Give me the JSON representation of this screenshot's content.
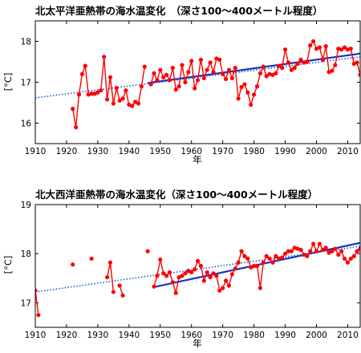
{
  "chart_data": [
    {
      "type": "line",
      "title": "北太平洋亜熱帯の海水温変化　（深さ100〜400メートル程度）",
      "xlabel": "年",
      "ylabel": "[°C]",
      "xlim": [
        1910,
        2014
      ],
      "ylim": [
        15.5,
        18.5
      ],
      "xticks": [
        1910,
        1920,
        1930,
        1940,
        1950,
        1960,
        1970,
        1980,
        1990,
        2000,
        2010
      ],
      "yticks": [
        16,
        17,
        18
      ],
      "series": [
        {
          "style": "red-line-markers",
          "color": "#ff0000",
          "segments": [
            [
              [
                1922,
                16.35
              ],
              [
                1923,
                15.9
              ],
              [
                1924,
                16.7
              ],
              [
                1925,
                17.2
              ],
              [
                1926,
                17.4
              ],
              [
                1927,
                16.7
              ],
              [
                1928,
                16.72
              ],
              [
                1929,
                16.72
              ],
              [
                1930,
                16.75
              ],
              [
                1931,
                16.8
              ],
              [
                1932,
                17.62
              ],
              [
                1933,
                16.58
              ],
              [
                1934,
                17.12
              ],
              [
                1935,
                16.48
              ],
              [
                1936,
                16.86
              ],
              [
                1937,
                16.55
              ],
              [
                1938,
                16.6
              ],
              [
                1939,
                16.8
              ],
              [
                1940,
                16.45
              ],
              [
                1941,
                16.42
              ],
              [
                1942,
                16.52
              ],
              [
                1943,
                16.48
              ],
              [
                1944,
                16.9
              ],
              [
                1945,
                17.38
              ]
            ],
            [
              [
                1947,
                16.95
              ],
              [
                1948,
                17.22
              ],
              [
                1949,
                17.05
              ],
              [
                1950,
                17.3
              ],
              [
                1951,
                17.12
              ],
              [
                1952,
                17.18
              ],
              [
                1953,
                17.05
              ],
              [
                1954,
                17.35
              ],
              [
                1955,
                16.82
              ],
              [
                1956,
                16.9
              ],
              [
                1957,
                17.42
              ],
              [
                1958,
                17.0
              ],
              [
                1959,
                17.25
              ],
              [
                1960,
                17.52
              ],
              [
                1961,
                16.85
              ],
              [
                1962,
                17.05
              ],
              [
                1963,
                17.55
              ],
              [
                1964,
                17.1
              ],
              [
                1965,
                17.3
              ],
              [
                1966,
                17.48
              ],
              [
                1967,
                17.25
              ],
              [
                1968,
                17.58
              ],
              [
                1969,
                17.55
              ],
              [
                1970,
                17.2
              ],
              [
                1971,
                17.08
              ],
              [
                1972,
                17.3
              ],
              [
                1973,
                17.1
              ],
              [
                1974,
                17.35
              ],
              [
                1975,
                16.6
              ],
              [
                1976,
                16.88
              ],
              [
                1977,
                16.95
              ],
              [
                1978,
                16.75
              ],
              [
                1979,
                16.45
              ],
              [
                1980,
                16.7
              ],
              [
                1981,
                16.9
              ],
              [
                1982,
                17.22
              ],
              [
                1983,
                17.38
              ],
              [
                1984,
                17.15
              ],
              [
                1985,
                17.2
              ],
              [
                1986,
                17.18
              ],
              [
                1987,
                17.22
              ],
              [
                1988,
                17.4
              ],
              [
                1989,
                17.35
              ],
              [
                1990,
                17.8
              ],
              [
                1991,
                17.48
              ],
              [
                1992,
                17.3
              ],
              [
                1993,
                17.35
              ],
              [
                1994,
                17.45
              ],
              [
                1995,
                17.55
              ],
              [
                1996,
                17.48
              ],
              [
                1997,
                17.5
              ],
              [
                1998,
                17.9
              ],
              [
                1999,
                18.0
              ],
              [
                2000,
                17.82
              ],
              [
                2001,
                17.85
              ],
              [
                2002,
                17.55
              ],
              [
                2003,
                17.88
              ],
              [
                2004,
                17.25
              ],
              [
                2005,
                17.28
              ],
              [
                2006,
                17.42
              ],
              [
                2007,
                17.82
              ],
              [
                2008,
                17.8
              ],
              [
                2009,
                17.85
              ],
              [
                2010,
                17.8
              ],
              [
                2011,
                17.82
              ],
              [
                2012,
                17.45
              ],
              [
                2013,
                17.48
              ],
              [
                2014,
                17.18
              ]
            ]
          ]
        },
        {
          "style": "blue-dotted-trend",
          "color": "#1f5ad6",
          "points": [
            [
              1910,
              16.62
            ],
            [
              2014,
              17.62
            ]
          ]
        },
        {
          "style": "blue-solid-trend",
          "color": "#1535c8",
          "points": [
            [
              1946,
              16.98
            ],
            [
              2014,
              17.7
            ]
          ]
        }
      ]
    },
    {
      "type": "line",
      "title": "北大西洋亜熱帯の海水温変化（深さ100〜400メートル程度）",
      "xlabel": "年",
      "ylabel": "[°C]",
      "xlim": [
        1910,
        2014
      ],
      "ylim": [
        16.5,
        19.0
      ],
      "xticks": [
        1910,
        1920,
        1930,
        1940,
        1950,
        1960,
        1970,
        1980,
        1990,
        2000,
        2010
      ],
      "yticks": [
        17,
        18,
        19
      ],
      "series": [
        {
          "style": "red-line-markers",
          "color": "#ff0000",
          "segments": [
            [
              [
                1910,
                17.25
              ],
              [
                1911,
                16.75
              ]
            ],
            [
              [
                1922,
                17.78
              ]
            ],
            [
              [
                1928,
                17.9
              ]
            ],
            [
              [
                1933,
                17.52
              ],
              [
                1934,
                17.82
              ],
              [
                1935,
                17.22
              ]
            ],
            [
              [
                1937,
                17.35
              ],
              [
                1938,
                17.15
              ]
            ],
            [
              [
                1946,
                18.05
              ]
            ],
            [
              [
                1948,
                17.33
              ],
              [
                1949,
                17.55
              ],
              [
                1950,
                17.88
              ],
              [
                1951,
                17.6
              ],
              [
                1952,
                17.55
              ],
              [
                1953,
                17.62
              ],
              [
                1954,
                17.42
              ],
              [
                1955,
                17.2
              ],
              [
                1956,
                17.52
              ],
              [
                1957,
                17.55
              ],
              [
                1958,
                17.6
              ],
              [
                1959,
                17.65
              ],
              [
                1960,
                17.62
              ],
              [
                1961,
                17.68
              ],
              [
                1962,
                17.85
              ],
              [
                1963,
                17.75
              ],
              [
                1964,
                17.45
              ],
              [
                1965,
                17.62
              ],
              [
                1966,
                17.52
              ],
              [
                1967,
                17.6
              ],
              [
                1968,
                17.55
              ],
              [
                1969,
                17.25
              ],
              [
                1970,
                17.3
              ],
              [
                1971,
                17.45
              ],
              [
                1972,
                17.35
              ],
              [
                1973,
                17.58
              ],
              [
                1974,
                17.7
              ],
              [
                1975,
                17.82
              ],
              [
                1976,
                18.05
              ],
              [
                1977,
                17.95
              ],
              [
                1978,
                17.9
              ],
              [
                1979,
                17.72
              ],
              [
                1980,
                17.75
              ],
              [
                1981,
                17.75
              ],
              [
                1982,
                17.3
              ],
              [
                1983,
                17.82
              ],
              [
                1984,
                17.95
              ],
              [
                1985,
                17.9
              ],
              [
                1986,
                17.82
              ],
              [
                1987,
                17.95
              ],
              [
                1988,
                17.9
              ],
              [
                1989,
                17.92
              ],
              [
                1990,
                18.0
              ],
              [
                1991,
                18.05
              ],
              [
                1992,
                18.05
              ],
              [
                1993,
                18.12
              ],
              [
                1994,
                18.1
              ],
              [
                1995,
                18.08
              ],
              [
                1996,
                17.98
              ],
              [
                1997,
                17.95
              ],
              [
                1998,
                18.05
              ],
              [
                1999,
                18.2
              ],
              [
                2000,
                18.05
              ],
              [
                2001,
                18.2
              ],
              [
                2002,
                18.08
              ],
              [
                2003,
                18.12
              ],
              [
                2004,
                18.02
              ],
              [
                2005,
                18.05
              ],
              [
                2006,
                18.1
              ],
              [
                2007,
                17.98
              ],
              [
                2008,
                18.05
              ],
              [
                2009,
                17.9
              ],
              [
                2010,
                17.82
              ],
              [
                2011,
                17.9
              ],
              [
                2012,
                17.95
              ],
              [
                2013,
                18.05
              ],
              [
                2014,
                18.1
              ]
            ]
          ]
        },
        {
          "style": "blue-dotted-trend",
          "color": "#1f5ad6",
          "points": [
            [
              1910,
              17.22
            ],
            [
              2014,
              18.15
            ]
          ]
        },
        {
          "style": "blue-solid-trend",
          "color": "#1535c8",
          "points": [
            [
              1948,
              17.32
            ],
            [
              2014,
              18.22
            ]
          ]
        }
      ]
    }
  ]
}
